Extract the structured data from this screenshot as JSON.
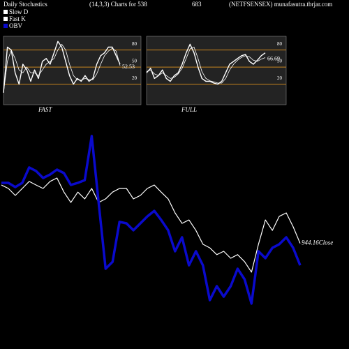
{
  "header": {
    "left": "Daily Stochastics",
    "mid": "(14,3,3) Charts for 538",
    "code": "683",
    "site": "(NETFSENSEX) munafasutra.tbrjar.com"
  },
  "chart_data": [
    {
      "type": "line",
      "label": "FAST",
      "ylim": [
        -16,
        104
      ],
      "yticks": [
        20,
        50,
        80
      ],
      "grid": true,
      "grid_color": "#c8841e",
      "series": [
        {
          "name": "Slow D",
          "color": "#ffffff",
          "values": [
            5,
            60,
            80,
            65,
            45,
            40,
            50,
            40,
            40,
            35,
            45,
            55,
            60,
            65,
            80,
            90,
            80,
            55,
            35,
            28,
            27,
            30,
            28,
            28,
            38,
            55,
            70,
            78,
            83,
            78,
            52.53
          ]
        },
        {
          "name": "Fast K",
          "color": "#ffffff",
          "values": [
            5,
            85,
            80,
            40,
            20,
            55,
            45,
            25,
            45,
            30,
            60,
            65,
            55,
            75,
            95,
            85,
            60,
            35,
            20,
            30,
            25,
            35,
            25,
            30,
            55,
            70,
            75,
            85,
            85,
            70,
            55
          ]
        }
      ]
    },
    {
      "type": "line",
      "label": "FULL",
      "ylim": [
        -16,
        104
      ],
      "yticks": [
        20,
        50,
        80
      ],
      "grid": true,
      "grid_color": "#c8841e",
      "series": [
        {
          "name": "Slow D",
          "color": "#ffffff",
          "values": [
            42,
            45,
            38,
            35,
            40,
            35,
            30,
            32,
            38,
            48,
            65,
            82,
            85,
            65,
            42,
            30,
            26,
            24,
            22,
            22,
            30,
            45,
            55,
            62,
            67,
            70,
            68,
            62,
            60,
            64,
            66.69
          ]
        },
        {
          "name": "Fast K",
          "color": "#ffffff",
          "values": [
            40,
            48,
            30,
            35,
            45,
            30,
            25,
            35,
            40,
            55,
            75,
            90,
            75,
            50,
            30,
            25,
            25,
            22,
            20,
            25,
            40,
            55,
            60,
            65,
            70,
            72,
            60,
            55,
            62,
            70,
            75
          ]
        }
      ]
    },
    {
      "type": "line",
      "ylim": [
        913,
        993
      ],
      "y2lim": [
        0,
        100
      ],
      "series": [
        {
          "name": "Close",
          "color": "#ffffff",
          "values": [
            969.9,
            968.4,
            965.3,
            968.4,
            971.5,
            969.9,
            968.4,
            971.5,
            973.0,
            966.8,
            962.2,
            966.8,
            963.8,
            968.4,
            962.2,
            963.8,
            966.8,
            968.4,
            968.4,
            963.8,
            965.3,
            968.4,
            969.9,
            966.8,
            963.8,
            957.6,
            953.0,
            954.5,
            949.9,
            943.8,
            942.2,
            939.2,
            940.7,
            937.6,
            939.2,
            936.1,
            931.5,
            943.8,
            954.5,
            949.9,
            956.1,
            957.6,
            951.5,
            944.16
          ]
        },
        {
          "name": "OBV",
          "color": "#0a0acc",
          "axis": "y2",
          "values": [
            72.3,
            72.3,
            70,
            72.3,
            80.8,
            78.8,
            75,
            76.9,
            79.6,
            77.7,
            71.2,
            72.3,
            73.8,
            98.1,
            61.5,
            25,
            28.8,
            50.8,
            50,
            46.2,
            50,
            53.8,
            56.9,
            51.9,
            46.2,
            34.6,
            42.3,
            26.9,
            34.6,
            26.9,
            7.7,
            15.4,
            9.6,
            15.4,
            25,
            19.2,
            5.8,
            34.6,
            30.8,
            36.5,
            38.5,
            42.3,
            36.5,
            26.9
          ]
        }
      ]
    }
  ]
}
